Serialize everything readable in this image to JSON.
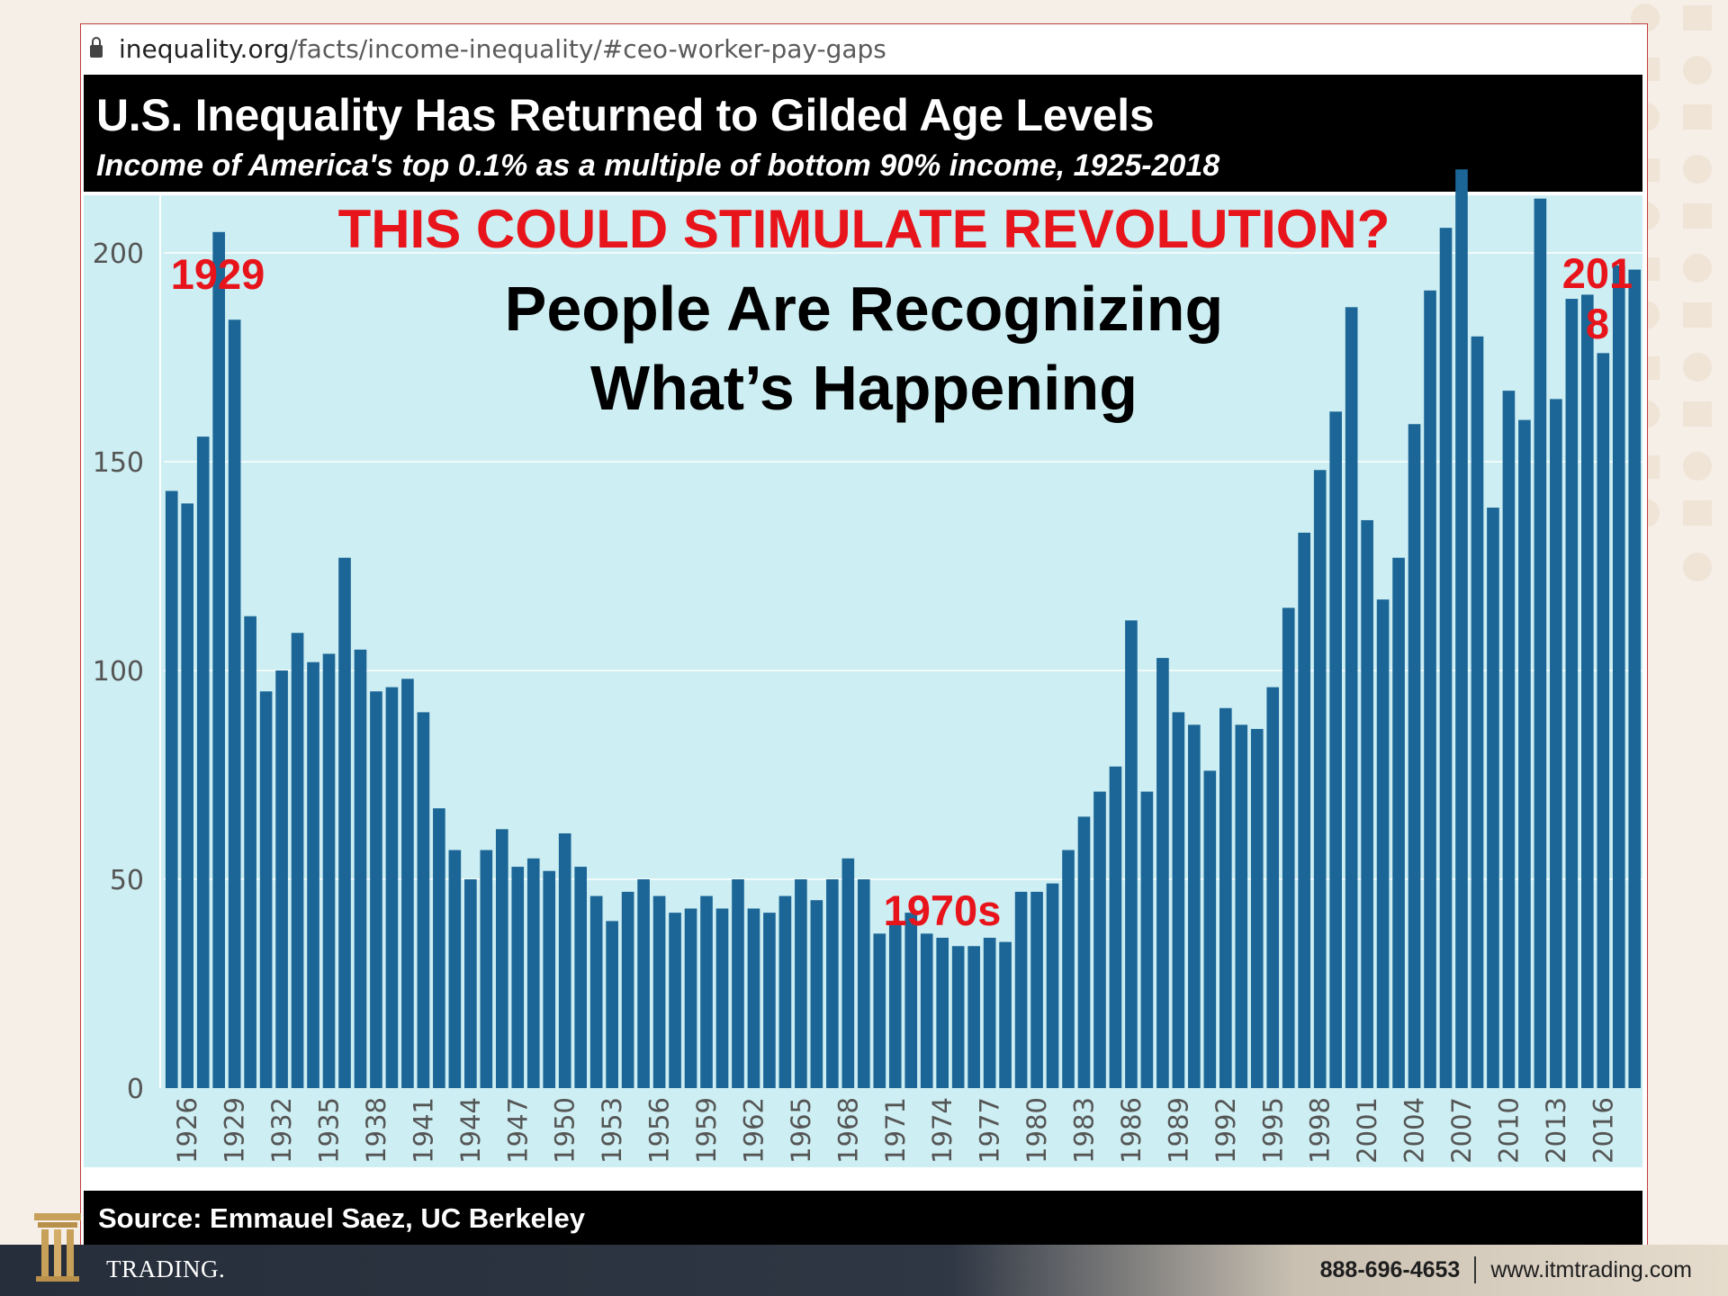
{
  "browser": {
    "url_domain": "inequality.org",
    "url_path": "/facts/income-inequality/#ceo-worker-pay-gaps"
  },
  "header": {
    "title": "U.S. Inequality Has Returned to Gilded Age Levels",
    "subtitle": "Income of America's top 0.1% as a multiple of bottom 90% income, 1925-2018"
  },
  "annotations": {
    "headline": "THIS COULD STIMULATE REVOLUTION?",
    "line1": "People Are Recognizing",
    "line2": "What’s Happening",
    "label_1929": "1929",
    "label_1970s": "1970s",
    "label_2018_a": "201",
    "label_2018_b": "8"
  },
  "source": "Source: Emmauel Saez, UC Berkeley",
  "footer": {
    "brand": "TRADING.",
    "phone": "888-696-4653",
    "website": "www.itmtrading.com"
  },
  "colors": {
    "bar": "#1b6697",
    "plot_bg": "#cdeef2",
    "accent_red": "#e8141b",
    "grid": "#f2fbfc"
  },
  "chart_data": {
    "type": "bar",
    "title": "U.S. Inequality Has Returned to Gilded Age Levels",
    "subtitle": "Income of America's top 0.1% as a multiple of bottom 90% income, 1925-2018",
    "xlabel": "",
    "ylabel": "",
    "ylim": [
      0,
      220
    ],
    "yticks": [
      0,
      50,
      100,
      150,
      200
    ],
    "grid": true,
    "legend": "none",
    "categories": [
      1925,
      1926,
      1927,
      1928,
      1929,
      1930,
      1931,
      1932,
      1933,
      1934,
      1935,
      1936,
      1937,
      1938,
      1939,
      1940,
      1941,
      1942,
      1943,
      1944,
      1945,
      1946,
      1947,
      1948,
      1949,
      1950,
      1951,
      1952,
      1953,
      1954,
      1955,
      1956,
      1957,
      1958,
      1959,
      1960,
      1961,
      1962,
      1963,
      1964,
      1965,
      1966,
      1967,
      1968,
      1969,
      1970,
      1971,
      1972,
      1973,
      1974,
      1975,
      1976,
      1977,
      1978,
      1979,
      1980,
      1981,
      1982,
      1983,
      1984,
      1985,
      1986,
      1987,
      1988,
      1989,
      1990,
      1991,
      1992,
      1993,
      1994,
      1995,
      1996,
      1997,
      1998,
      1999,
      2000,
      2001,
      2002,
      2003,
      2004,
      2005,
      2006,
      2007,
      2008,
      2009,
      2010,
      2011,
      2012,
      2013,
      2014,
      2015,
      2016,
      2017,
      2018
    ],
    "values": [
      143,
      140,
      156,
      205,
      184,
      113,
      95,
      100,
      109,
      102,
      104,
      127,
      105,
      95,
      96,
      98,
      90,
      67,
      57,
      50,
      57,
      62,
      53,
      55,
      52,
      61,
      53,
      46,
      40,
      47,
      50,
      46,
      42,
      43,
      46,
      43,
      50,
      43,
      42,
      46,
      50,
      45,
      50,
      55,
      50,
      37,
      40,
      42,
      37,
      36,
      34,
      34,
      36,
      35,
      47,
      47,
      49,
      57,
      65,
      71,
      77,
      112,
      71,
      103,
      90,
      87,
      76,
      91,
      87,
      86,
      96,
      115,
      133,
      148,
      162,
      187,
      136,
      117,
      127,
      159,
      191,
      206,
      220,
      180,
      139,
      167,
      160,
      213,
      165,
      189,
      190,
      176,
      197,
      196
    ],
    "xtick_labels": [
      "1926",
      "1929",
      "1932",
      "1935",
      "1938",
      "1941",
      "1944",
      "1947",
      "1950",
      "1953",
      "1956",
      "1959",
      "1962",
      "1965",
      "1968",
      "1971",
      "1974",
      "1977",
      "1980",
      "1983",
      "1986",
      "1989",
      "1992",
      "1995",
      "1998",
      "2001",
      "2004",
      "2007",
      "2010",
      "2013",
      "2016"
    ]
  }
}
